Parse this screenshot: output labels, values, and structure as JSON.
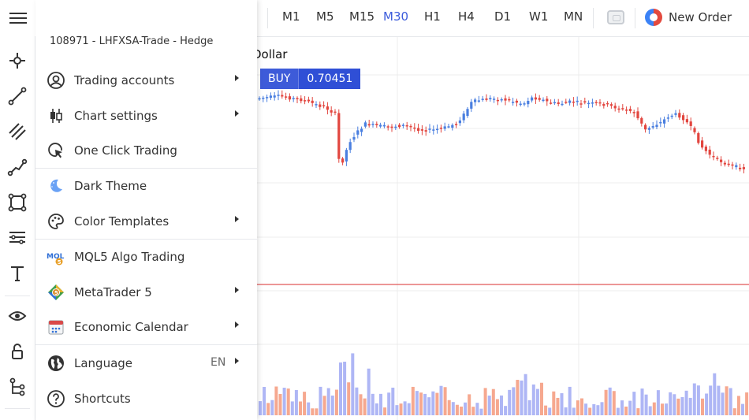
{
  "toolbar": {
    "timeframes": [
      "M1",
      "M5",
      "M15",
      "M30",
      "H1",
      "H4",
      "D1",
      "W1",
      "MN"
    ],
    "active_timeframe": "M30",
    "new_order_label": "New Order"
  },
  "chart": {
    "symbol_name": "Dollar",
    "buy_label": "BUY",
    "buy_price": "0.70451",
    "bull_color": "#4a7fe0",
    "bear_color": "#e2463f",
    "volume_bull_color": "#aeb6f5",
    "volume_bear_color": "#f6a88f",
    "level_line_color": "#e05757"
  },
  "menu": {
    "account": "108971 - LHFXSA-Trade - Hedge",
    "items": [
      {
        "label": "Trading accounts",
        "icon": "user-circle-icon",
        "submenu": true
      },
      {
        "label": "Chart settings",
        "icon": "candlestick-icon",
        "submenu": true
      },
      {
        "label": "One Click Trading",
        "icon": "cursor-click-icon",
        "submenu": false
      },
      {
        "label": "Dark Theme",
        "icon": "moon-icon",
        "submenu": false
      },
      {
        "label": "Color Templates",
        "icon": "palette-icon",
        "submenu": true
      },
      {
        "label": "MQL5 Algo Trading",
        "icon": "mql5-logo-icon",
        "submenu": false
      },
      {
        "label": "MetaTrader 5",
        "icon": "metatrader-logo-icon",
        "submenu": true
      },
      {
        "label": "Economic Calendar",
        "icon": "calendar-icon",
        "submenu": true
      },
      {
        "label": "Language",
        "icon": "globe-icon",
        "submenu": true,
        "extra": "EN"
      },
      {
        "label": "Shortcuts",
        "icon": "help-circle-icon",
        "submenu": false
      }
    ]
  }
}
